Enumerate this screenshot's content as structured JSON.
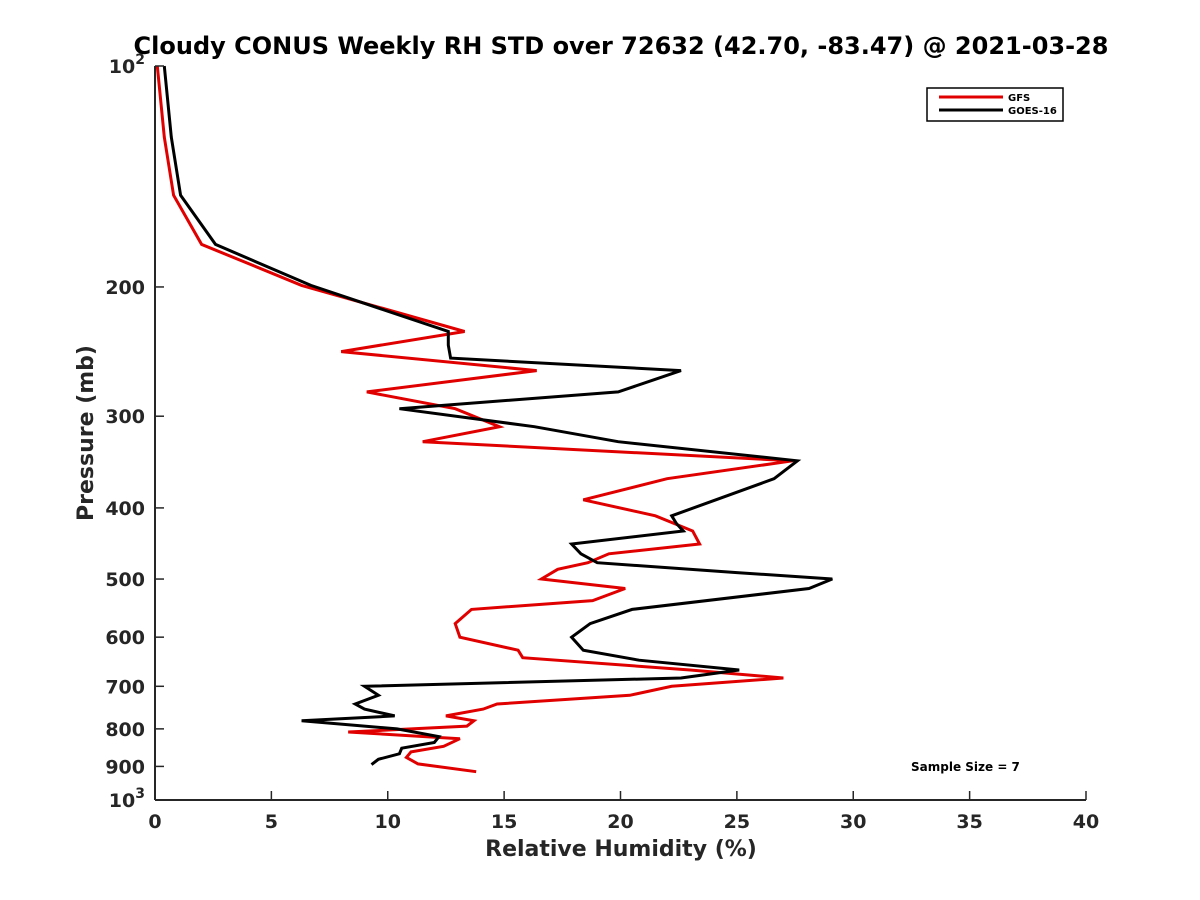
{
  "chart_data": {
    "type": "line",
    "title": "Cloudy CONUS Weekly RH STD over 72632 (42.70, -83.47) @ 2021-03-28",
    "xlabel": "Relative Humidity (%)",
    "ylabel": "Pressure (mb)",
    "xlim": [
      0,
      40
    ],
    "ylim": [
      100,
      1000
    ],
    "y_scale": "log",
    "y_reversed": true,
    "grid": false,
    "legend_position": "top-right",
    "x_ticks": [
      "0",
      "5",
      "10",
      "15",
      "20",
      "25",
      "30",
      "35",
      "40"
    ],
    "y_ticks": [
      {
        "value": 100,
        "base": "10",
        "exp": "2"
      },
      {
        "value": 200,
        "label": "200"
      },
      {
        "value": 300,
        "label": "300"
      },
      {
        "value": 400,
        "label": "400"
      },
      {
        "value": 500,
        "label": "500"
      },
      {
        "value": 600,
        "label": "600"
      },
      {
        "value": 700,
        "label": "700"
      },
      {
        "value": 800,
        "label": "800"
      },
      {
        "value": 900,
        "label": "900"
      },
      {
        "value": 1000,
        "base": "10",
        "exp": "3"
      }
    ],
    "series": [
      {
        "name": "GFS",
        "color": "#e00000",
        "points": [
          [
            0.1,
            100
          ],
          [
            0.4,
            125
          ],
          [
            0.8,
            150
          ],
          [
            2.0,
            175
          ],
          [
            6.3,
            199
          ],
          [
            13.3,
            230
          ],
          [
            8.0,
            245
          ],
          [
            16.4,
            260
          ],
          [
            9.1,
            278
          ],
          [
            12.9,
            293
          ],
          [
            14.8,
            310
          ],
          [
            11.5,
            325
          ],
          [
            27.4,
            345
          ],
          [
            22.0,
            365
          ],
          [
            18.4,
            390
          ],
          [
            21.5,
            410
          ],
          [
            23.1,
            430
          ],
          [
            23.4,
            448
          ],
          [
            19.5,
            462
          ],
          [
            18.6,
            475
          ],
          [
            17.3,
            485
          ],
          [
            16.6,
            500
          ],
          [
            20.2,
            515
          ],
          [
            18.8,
            535
          ],
          [
            13.6,
            550
          ],
          [
            12.9,
            575
          ],
          [
            13.1,
            600
          ],
          [
            15.6,
            625
          ],
          [
            15.8,
            640
          ],
          [
            23.0,
            665
          ],
          [
            27.0,
            682
          ],
          [
            22.2,
            700
          ],
          [
            20.4,
            720
          ],
          [
            14.7,
            740
          ],
          [
            14.1,
            752
          ],
          [
            12.5,
            768
          ],
          [
            13.7,
            780
          ],
          [
            13.4,
            793
          ],
          [
            8.3,
            808
          ],
          [
            13.1,
            825
          ],
          [
            12.4,
            845
          ],
          [
            11.0,
            860
          ],
          [
            10.8,
            875
          ],
          [
            11.3,
            893
          ],
          [
            13.8,
            915
          ]
        ]
      },
      {
        "name": "GOES-16",
        "color": "#000000",
        "points": [
          [
            0.4,
            100
          ],
          [
            0.7,
            125
          ],
          [
            1.1,
            150
          ],
          [
            2.6,
            175
          ],
          [
            6.7,
            199
          ],
          [
            12.6,
            230
          ],
          [
            12.6,
            240
          ],
          [
            12.7,
            250
          ],
          [
            22.6,
            260
          ],
          [
            19.9,
            278
          ],
          [
            10.5,
            293
          ],
          [
            16.3,
            310
          ],
          [
            19.9,
            325
          ],
          [
            27.6,
            345
          ],
          [
            26.6,
            365
          ],
          [
            24.1,
            390
          ],
          [
            22.2,
            410
          ],
          [
            22.4,
            420
          ],
          [
            22.7,
            430
          ],
          [
            17.9,
            448
          ],
          [
            18.3,
            462
          ],
          [
            19.0,
            475
          ],
          [
            25.0,
            490
          ],
          [
            29.1,
            500
          ],
          [
            28.1,
            515
          ],
          [
            20.5,
            550
          ],
          [
            18.7,
            575
          ],
          [
            17.9,
            600
          ],
          [
            18.4,
            625
          ],
          [
            20.8,
            645
          ],
          [
            25.1,
            665
          ],
          [
            22.6,
            682
          ],
          [
            9.0,
            700
          ],
          [
            9.6,
            720
          ],
          [
            8.6,
            740
          ],
          [
            9.0,
            752
          ],
          [
            10.3,
            768
          ],
          [
            6.3,
            780
          ],
          [
            10.4,
            800
          ],
          [
            12.2,
            820
          ],
          [
            12.0,
            835
          ],
          [
            10.6,
            850
          ],
          [
            10.5,
            865
          ],
          [
            9.6,
            880
          ],
          [
            9.3,
            895
          ]
        ]
      }
    ],
    "annotation": "Sample Size = 7"
  }
}
